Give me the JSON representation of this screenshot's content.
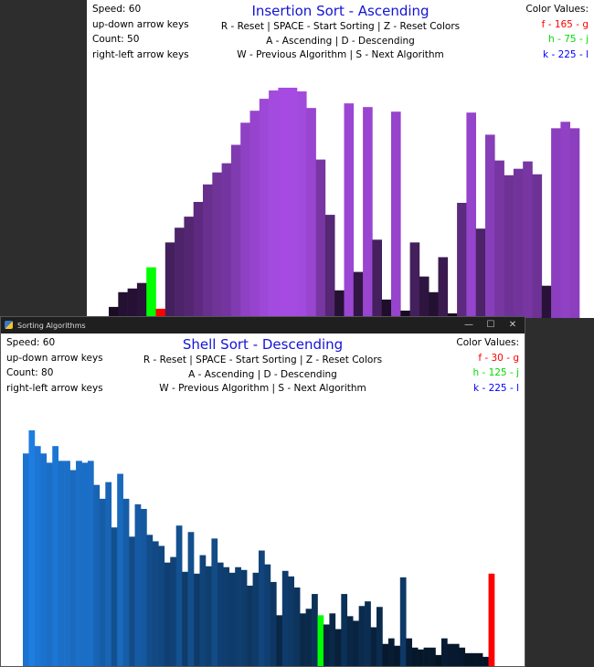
{
  "windows": [
    {
      "id": "win1",
      "title_text": "",
      "speed": "Speed: 60",
      "up_down": "up-down arrow keys",
      "count": "Count: 50",
      "right_left": "right-left arrow keys",
      "algorithm_title": "Insertion Sort - Ascending",
      "instructions": [
        "R - Reset | SPACE - Start Sorting | Z - Reset Colors",
        "A - Ascending | D - Descending",
        "W - Previous Algorithm | S - Next Algorithm"
      ],
      "color_values_label": "Color Values:",
      "color_values": [
        {
          "text": "f - 165 - g",
          "color": "#ff0000"
        },
        {
          "text": "h - 75 - j",
          "color": "#00dd00"
        },
        {
          "text": "k - 225 - l",
          "color": "#0000ff"
        }
      ],
      "bar_base_color": "#a54be1",
      "bars": [
        {
          "value": 12
        },
        {
          "value": 28
        },
        {
          "value": 32
        },
        {
          "value": 38
        },
        {
          "value": 55,
          "state": "compare"
        },
        {
          "value": 10,
          "state": "swap"
        },
        {
          "value": 82
        },
        {
          "value": 98
        },
        {
          "value": 110
        },
        {
          "value": 126
        },
        {
          "value": 145
        },
        {
          "value": 158
        },
        {
          "value": 168
        },
        {
          "value": 188
        },
        {
          "value": 212
        },
        {
          "value": 225
        },
        {
          "value": 238
        },
        {
          "value": 247
        },
        {
          "value": 250
        },
        {
          "value": 250
        },
        {
          "value": 246
        },
        {
          "value": 228
        },
        {
          "value": 172
        },
        {
          "value": 112
        },
        {
          "value": 30
        },
        {
          "value": 233
        },
        {
          "value": 50
        },
        {
          "value": 229
        },
        {
          "value": 85
        },
        {
          "value": 20
        },
        {
          "value": 224
        },
        {
          "value": 8
        },
        {
          "value": 82
        },
        {
          "value": 45
        },
        {
          "value": 28
        },
        {
          "value": 66
        },
        {
          "value": 5
        },
        {
          "value": 125
        },
        {
          "value": 223
        },
        {
          "value": 97
        },
        {
          "value": 199
        },
        {
          "value": 171
        },
        {
          "value": 155
        },
        {
          "value": 162
        },
        {
          "value": 170
        },
        {
          "value": 156
        },
        {
          "value": 35
        },
        {
          "value": 206
        },
        {
          "value": 213
        },
        {
          "value": 206
        }
      ]
    },
    {
      "id": "win2",
      "title_text": "Sorting Algorithms",
      "speed": "Speed: 60",
      "up_down": "up-down arrow keys",
      "count": "Count: 80",
      "right_left": "right-left arrow keys",
      "algorithm_title": "Shell Sort - Descending",
      "instructions": [
        "R - Reset | SPACE - Start Sorting | Z - Reset Colors",
        "A - Ascending | D - Descending",
        "W - Previous Algorithm | S - Next Algorithm"
      ],
      "color_values_label": "Color Values:",
      "color_values": [
        {
          "text": "f - 30 - g",
          "color": "#ff0000"
        },
        {
          "text": "h - 125 - j",
          "color": "#00dd00"
        },
        {
          "text": "k - 225 - l",
          "color": "#0000ff"
        }
      ],
      "bar_base_color": "#1e7de1",
      "bars": [
        {
          "value": 230
        },
        {
          "value": 255
        },
        {
          "value": 238
        },
        {
          "value": 230
        },
        {
          "value": 220
        },
        {
          "value": 238
        },
        {
          "value": 222
        },
        {
          "value": 222
        },
        {
          "value": 212
        },
        {
          "value": 222
        },
        {
          "value": 220
        },
        {
          "value": 222
        },
        {
          "value": 196
        },
        {
          "value": 181
        },
        {
          "value": 199
        },
        {
          "value": 150
        },
        {
          "value": 208
        },
        {
          "value": 181
        },
        {
          "value": 140
        },
        {
          "value": 175
        },
        {
          "value": 170
        },
        {
          "value": 142
        },
        {
          "value": 135
        },
        {
          "value": 130
        },
        {
          "value": 112
        },
        {
          "value": 118
        },
        {
          "value": 152
        },
        {
          "value": 102
        },
        {
          "value": 145
        },
        {
          "value": 100
        },
        {
          "value": 120
        },
        {
          "value": 108
        },
        {
          "value": 138
        },
        {
          "value": 112
        },
        {
          "value": 107
        },
        {
          "value": 101
        },
        {
          "value": 107
        },
        {
          "value": 104
        },
        {
          "value": 87
        },
        {
          "value": 101
        },
        {
          "value": 125
        },
        {
          "value": 110
        },
        {
          "value": 91
        },
        {
          "value": 55
        },
        {
          "value": 103
        },
        {
          "value": 97
        },
        {
          "value": 85
        },
        {
          "value": 57
        },
        {
          "value": 62
        },
        {
          "value": 78
        },
        {
          "value": 55,
          "state": "compare"
        },
        {
          "value": 45
        },
        {
          "value": 57
        },
        {
          "value": 40
        },
        {
          "value": 78
        },
        {
          "value": 54
        },
        {
          "value": 49
        },
        {
          "value": 65
        },
        {
          "value": 70
        },
        {
          "value": 42
        },
        {
          "value": 64
        },
        {
          "value": 24
        },
        {
          "value": 30
        },
        {
          "value": 22
        },
        {
          "value": 96
        },
        {
          "value": 30
        },
        {
          "value": 20
        },
        {
          "value": 18
        },
        {
          "value": 20
        },
        {
          "value": 20
        },
        {
          "value": 12
        },
        {
          "value": 30
        },
        {
          "value": 24
        },
        {
          "value": 24
        },
        {
          "value": 20
        },
        {
          "value": 14
        },
        {
          "value": 14
        },
        {
          "value": 14
        },
        {
          "value": 10
        },
        {
          "value": 100,
          "state": "swap"
        }
      ]
    }
  ]
}
